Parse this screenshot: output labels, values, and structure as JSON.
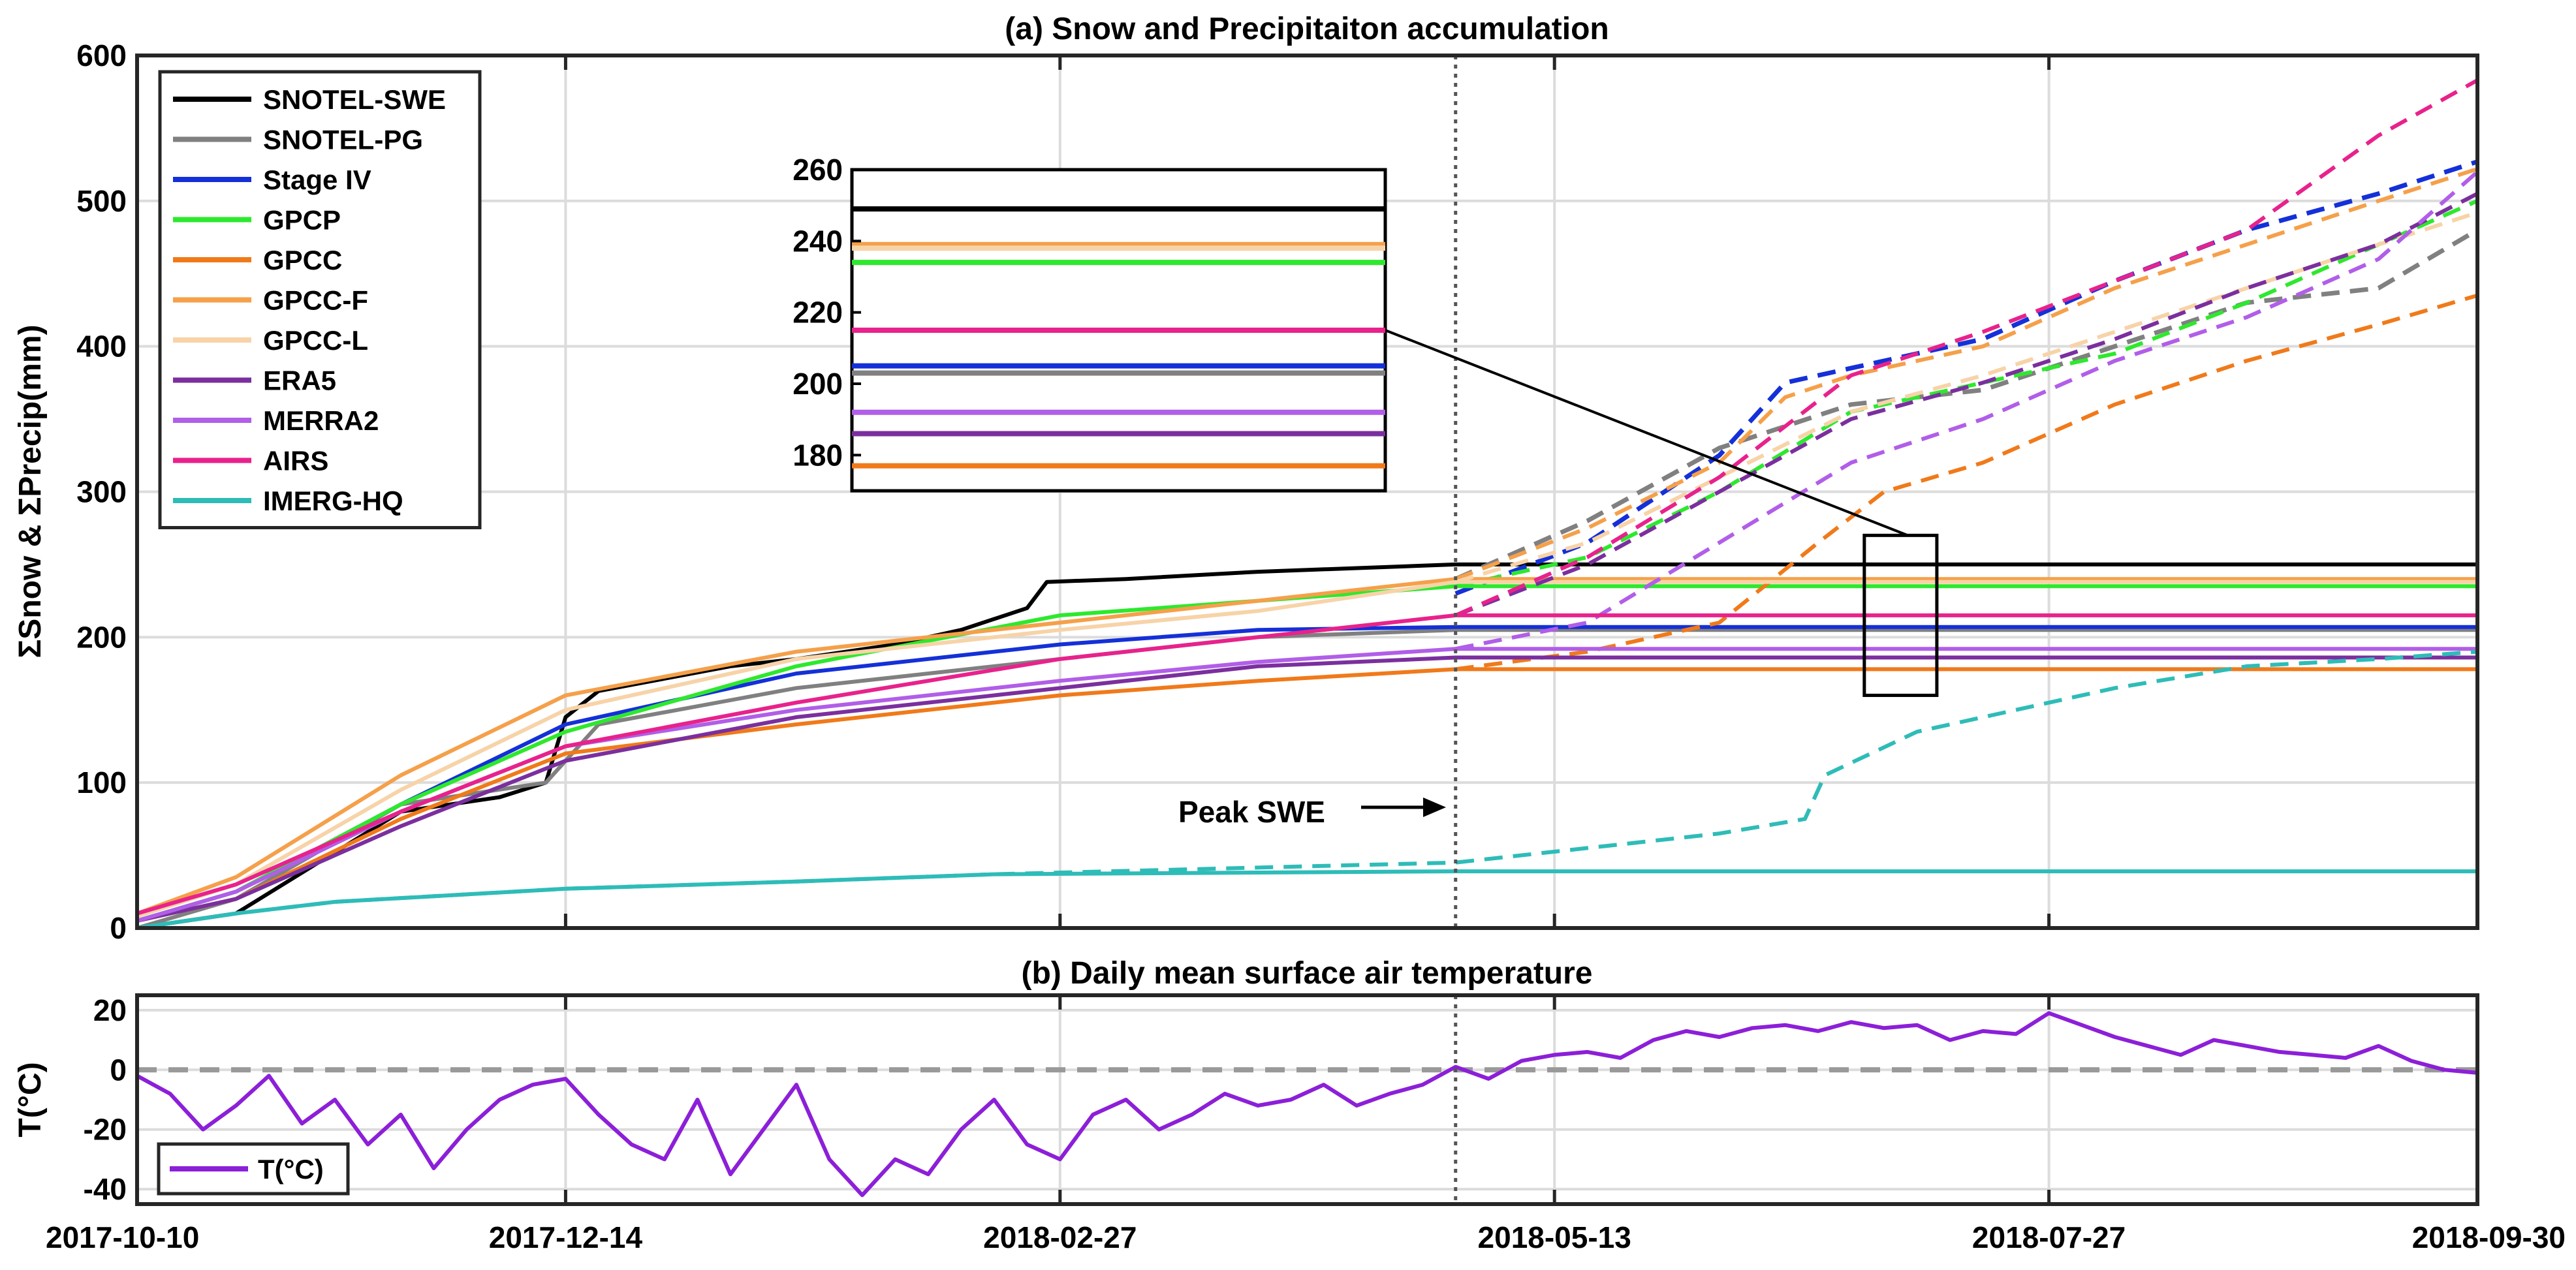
{
  "chart_data": [
    {
      "type": "line",
      "title": "(a) Snow and Precipitaiton accumulation",
      "xlabel": "",
      "ylabel": "ΣSnow & ΣPrecip(mm)",
      "ylim": [
        0,
        600
      ],
      "yticks": [
        0,
        100,
        200,
        300,
        400,
        500,
        600
      ],
      "xlim": [
        0,
        355
      ],
      "xticks": [
        0,
        65,
        140,
        215,
        290,
        355
      ],
      "xtick_labels": [
        "2017-10-10",
        "2017-12-14",
        "2018-02-27",
        "2018-05-13",
        "2018-07-27",
        "2018-09-30"
      ],
      "grid": true,
      "x_unit": "days since 2017-10-10",
      "annotation": {
        "text": "Peak SWE",
        "x_day": 200,
        "y": 83,
        "peak_line_day": 200
      },
      "zoom_box": {
        "x_range": [
          262,
          273
        ],
        "y_range": [
          160,
          270
        ]
      },
      "series": [
        {
          "name": "SNOTEL-SWE",
          "color": "#000000",
          "style": "solid",
          "width": 4,
          "x": [
            0,
            15,
            40,
            55,
            62,
            65,
            70,
            90,
            100,
            115,
            125,
            135,
            138,
            150,
            170,
            200,
            355
          ],
          "y": [
            0,
            10,
            80,
            90,
            100,
            145,
            163,
            180,
            185,
            195,
            205,
            220,
            238,
            240,
            245,
            250,
            250
          ]
        },
        {
          "name": "SNOTEL-PG",
          "color": "#808080",
          "style": "solid",
          "width": 4,
          "x": [
            0,
            15,
            40,
            62,
            70,
            100,
            140,
            170,
            200,
            355
          ],
          "y": [
            0,
            20,
            85,
            100,
            140,
            165,
            185,
            200,
            205,
            205
          ]
        },
        {
          "name": "SNOTEL-PG (precip)",
          "color": "#808080",
          "style": "dashed",
          "width": 5,
          "legend": false,
          "x": [
            200,
            220,
            240,
            260,
            280,
            300,
            320,
            340,
            355
          ],
          "y": [
            240,
            280,
            330,
            360,
            370,
            400,
            430,
            440,
            480
          ]
        },
        {
          "name": "Stage IV",
          "color": "#1430d8",
          "style": "solid",
          "width": 4,
          "x": [
            0,
            15,
            40,
            65,
            100,
            140,
            170,
            200,
            355
          ],
          "y": [
            5,
            25,
            85,
            140,
            175,
            195,
            205,
            207,
            207
          ]
        },
        {
          "name": "Stage IV (precip)",
          "color": "#1430d8",
          "style": "dashed",
          "width": 5,
          "legend": false,
          "x": [
            200,
            220,
            240,
            250,
            260,
            280,
            300,
            320,
            340,
            355
          ],
          "y": [
            230,
            265,
            325,
            375,
            385,
            405,
            445,
            480,
            505,
            527
          ]
        },
        {
          "name": "GPCP",
          "color": "#2ee82e",
          "style": "solid",
          "width": 4,
          "x": [
            0,
            15,
            40,
            65,
            100,
            140,
            170,
            200,
            355
          ],
          "y": [
            5,
            25,
            85,
            135,
            180,
            215,
            225,
            235,
            235
          ]
        },
        {
          "name": "GPCP (precip)",
          "color": "#2ee82e",
          "style": "dashed",
          "width": 4,
          "legend": false,
          "x": [
            200,
            220,
            240,
            260,
            280,
            300,
            320,
            340,
            355
          ],
          "y": [
            235,
            255,
            300,
            355,
            375,
            395,
            430,
            470,
            500
          ]
        },
        {
          "name": "GPCC",
          "color": "#f07a1a",
          "style": "solid",
          "width": 4,
          "x": [
            0,
            15,
            40,
            65,
            100,
            140,
            170,
            200,
            355
          ],
          "y": [
            5,
            20,
            75,
            120,
            140,
            160,
            170,
            178,
            178
          ]
        },
        {
          "name": "GPCC (precip)",
          "color": "#f07a1a",
          "style": "dashed",
          "width": 4,
          "legend": false,
          "x": [
            200,
            220,
            240,
            255,
            265,
            280,
            300,
            320,
            340,
            355
          ],
          "y": [
            178,
            190,
            210,
            265,
            300,
            320,
            360,
            390,
            415,
            435
          ]
        },
        {
          "name": "GPCC-F",
          "color": "#f5a04a",
          "style": "solid",
          "width": 4,
          "x": [
            0,
            15,
            40,
            65,
            100,
            140,
            170,
            200,
            355
          ],
          "y": [
            10,
            35,
            105,
            160,
            190,
            210,
            225,
            240,
            240
          ]
        },
        {
          "name": "GPCC-F (precip)",
          "color": "#f5a04a",
          "style": "dashed",
          "width": 4,
          "legend": false,
          "x": [
            200,
            220,
            240,
            250,
            260,
            280,
            300,
            320,
            340,
            355
          ],
          "y": [
            240,
            275,
            320,
            365,
            380,
            400,
            440,
            470,
            500,
            522
          ]
        },
        {
          "name": "GPCC-L",
          "color": "#f7d3a8",
          "style": "solid",
          "width": 4,
          "x": [
            0,
            15,
            40,
            65,
            100,
            140,
            170,
            200,
            355
          ],
          "y": [
            8,
            30,
            95,
            150,
            185,
            205,
            218,
            238,
            238
          ]
        },
        {
          "name": "GPCC-L (precip)",
          "color": "#f7d3a8",
          "style": "dashed",
          "width": 4,
          "legend": false,
          "x": [
            200,
            220,
            240,
            260,
            280,
            300,
            320,
            340,
            355
          ],
          "y": [
            238,
            265,
            310,
            355,
            380,
            410,
            440,
            470,
            492
          ]
        },
        {
          "name": "ERA5",
          "color": "#7b2f9e",
          "style": "solid",
          "width": 4,
          "x": [
            0,
            15,
            40,
            65,
            100,
            140,
            170,
            200,
            355
          ],
          "y": [
            5,
            20,
            70,
            115,
            145,
            165,
            180,
            186,
            186
          ]
        },
        {
          "name": "ERA5 (precip)",
          "color": "#7b2f9e",
          "style": "dashed",
          "width": 4,
          "legend": false,
          "x": [
            200,
            220,
            240,
            260,
            280,
            300,
            320,
            340,
            355
          ],
          "y": [
            215,
            250,
            300,
            350,
            375,
            405,
            440,
            470,
            505
          ]
        },
        {
          "name": "MERRA2",
          "color": "#b15ee8",
          "style": "solid",
          "width": 4,
          "x": [
            0,
            15,
            40,
            65,
            100,
            140,
            170,
            200,
            355
          ],
          "y": [
            5,
            25,
            80,
            125,
            150,
            170,
            183,
            192,
            192
          ]
        },
        {
          "name": "MERRA2 (precip)",
          "color": "#b15ee8",
          "style": "dashed",
          "width": 4,
          "legend": false,
          "x": [
            200,
            220,
            240,
            260,
            280,
            300,
            320,
            340,
            355
          ],
          "y": [
            192,
            210,
            265,
            320,
            350,
            390,
            420,
            460,
            520
          ]
        },
        {
          "name": "AIRS",
          "color": "#e8228c",
          "style": "solid",
          "width": 4,
          "x": [
            0,
            15,
            40,
            65,
            100,
            140,
            170,
            200,
            355
          ],
          "y": [
            10,
            30,
            80,
            125,
            155,
            185,
            200,
            215,
            215
          ]
        },
        {
          "name": "AIRS (precip)",
          "color": "#e8228c",
          "style": "dashed",
          "width": 4,
          "legend": false,
          "x": [
            200,
            220,
            240,
            260,
            280,
            300,
            320,
            340,
            355
          ],
          "y": [
            215,
            255,
            310,
            380,
            410,
            445,
            480,
            545,
            583
          ]
        },
        {
          "name": "IMERG-HQ",
          "color": "#2ebcb8",
          "style": "solid",
          "width": 4,
          "x": [
            0,
            15,
            30,
            65,
            100,
            130,
            200,
            355
          ],
          "y": [
            0,
            10,
            18,
            27,
            32,
            37,
            39,
            39
          ]
        },
        {
          "name": "IMERG-HQ (precip)",
          "color": "#2ebcb8",
          "style": "dashed",
          "width": 4,
          "legend": false,
          "x": [
            0,
            15,
            30,
            65,
            100,
            130,
            200,
            220,
            240,
            253,
            256,
            270,
            285,
            300,
            320,
            340,
            355
          ],
          "y": [
            0,
            10,
            18,
            27,
            32,
            37,
            45,
            55,
            65,
            75,
            105,
            135,
            150,
            165,
            180,
            185,
            190
          ]
        }
      ],
      "inset": {
        "ylim": [
          170,
          260
        ],
        "yticks": [
          180,
          200,
          220,
          240,
          260
        ],
        "levels": [
          {
            "name": "SNOTEL-SWE",
            "color": "#000000",
            "y": 249
          },
          {
            "name": "GPCC-F",
            "color": "#f5a04a",
            "y": 239
          },
          {
            "name": "GPCC-L",
            "color": "#f7d3a8",
            "y": 238
          },
          {
            "name": "GPCP",
            "color": "#2ee82e",
            "y": 234
          },
          {
            "name": "AIRS",
            "color": "#e8228c",
            "y": 215
          },
          {
            "name": "Stage IV",
            "color": "#1430d8",
            "y": 205
          },
          {
            "name": "SNOTEL-PG",
            "color": "#808080",
            "y": 203
          },
          {
            "name": "MERRA2",
            "color": "#b15ee8",
            "y": 192
          },
          {
            "name": "ERA5",
            "color": "#7b2f9e",
            "y": 186
          },
          {
            "name": "GPCC",
            "color": "#f07a1a",
            "y": 177
          }
        ]
      }
    },
    {
      "type": "line",
      "title": "(b) Daily mean surface air temperature",
      "xlabel": "",
      "ylabel": "T(°C)",
      "ylim": [
        -45,
        25
      ],
      "yticks": [
        -40,
        -20,
        0,
        20
      ],
      "xlim": [
        0,
        355
      ],
      "xticks": [
        0,
        65,
        140,
        215,
        290,
        355
      ],
      "xtick_labels": [
        "2017-10-10",
        "2017-12-14",
        "2018-02-27",
        "2018-05-13",
        "2018-07-27",
        "2018-09-30"
      ],
      "grid": true,
      "reference_line": {
        "y": 0,
        "color": "#999999",
        "style": "dashed"
      },
      "peak_line_day": 200,
      "series": [
        {
          "name": "T(°C)",
          "color": "#8c1fd8",
          "x": [
            0,
            5,
            10,
            15,
            20,
            25,
            30,
            35,
            40,
            45,
            50,
            55,
            60,
            65,
            70,
            75,
            80,
            85,
            90,
            95,
            100,
            105,
            110,
            115,
            120,
            125,
            130,
            135,
            140,
            145,
            150,
            155,
            160,
            165,
            170,
            175,
            180,
            185,
            190,
            195,
            200,
            205,
            210,
            215,
            220,
            225,
            230,
            235,
            240,
            245,
            250,
            255,
            260,
            265,
            270,
            275,
            280,
            285,
            290,
            295,
            300,
            305,
            310,
            315,
            320,
            325,
            330,
            335,
            340,
            345,
            350,
            355
          ],
          "y": [
            -2,
            -8,
            -20,
            -12,
            -2,
            -18,
            -10,
            -25,
            -15,
            -33,
            -20,
            -10,
            -5,
            -3,
            -15,
            -25,
            -30,
            -10,
            -35,
            -20,
            -5,
            -30,
            -42,
            -30,
            -35,
            -20,
            -10,
            -25,
            -30,
            -15,
            -10,
            -20,
            -15,
            -8,
            -12,
            -10,
            -5,
            -12,
            -8,
            -5,
            1,
            -3,
            3,
            5,
            6,
            4,
            10,
            13,
            11,
            14,
            15,
            13,
            16,
            14,
            15,
            10,
            13,
            12,
            19,
            15,
            11,
            8,
            5,
            10,
            8,
            6,
            5,
            4,
            8,
            3,
            0,
            -1
          ]
        }
      ],
      "legend": [
        {
          "name": "T(°C)",
          "color": "#8c1fd8"
        }
      ]
    }
  ]
}
